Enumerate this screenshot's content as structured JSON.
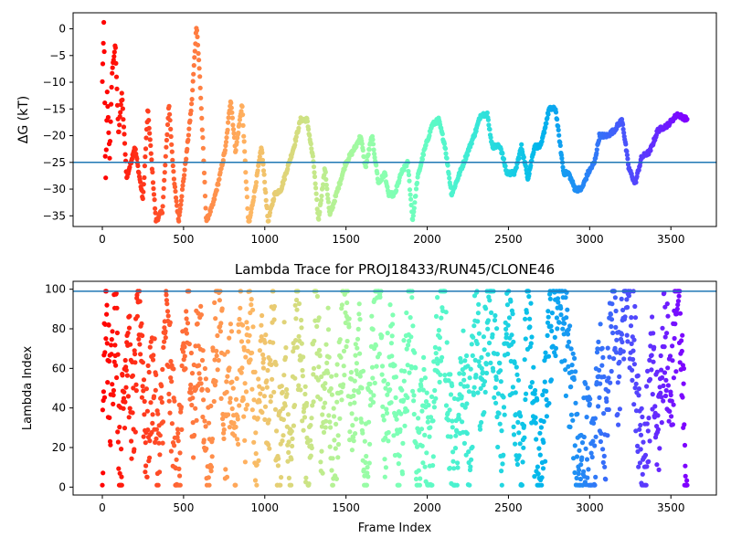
{
  "chart_data": [
    {
      "type": "scatter",
      "title": "",
      "xlabel": "",
      "ylabel": "ΔG (kT)",
      "xlim": [
        -180,
        3780
      ],
      "ylim": [
        -37,
        3
      ],
      "xticks": [
        0,
        500,
        1000,
        1500,
        2000,
        2500,
        3000,
        3500
      ],
      "yticks": [
        0,
        -5,
        -10,
        -15,
        -20,
        -25,
        -30,
        -35
      ],
      "hline": -25,
      "hline_color": "#1f77b4",
      "colormap": "rainbow (reversed with frame index: red at frame 0, violet at frame 3600)",
      "marker_size": 3,
      "frames": [
        0,
        3600
      ],
      "trace": [
        [
          0,
          -10
        ],
        [
          10,
          2
        ],
        [
          20,
          -30
        ],
        [
          30,
          -12
        ],
        [
          45,
          -24
        ],
        [
          60,
          -8
        ],
        [
          80,
          -3
        ],
        [
          100,
          -20
        ],
        [
          120,
          -12
        ],
        [
          150,
          -28
        ],
        [
          200,
          -22
        ],
        [
          250,
          -32
        ],
        [
          280,
          -15
        ],
        [
          330,
          -36
        ],
        [
          370,
          -34
        ],
        [
          410,
          -14
        ],
        [
          440,
          -28
        ],
        [
          470,
          -36
        ],
        [
          520,
          -23
        ],
        [
          550,
          -14
        ],
        [
          580,
          1
        ],
        [
          600,
          -9
        ],
        [
          620,
          -22
        ],
        [
          640,
          -36
        ],
        [
          680,
          -33
        ],
        [
          720,
          -28
        ],
        [
          760,
          -22
        ],
        [
          790,
          -13
        ],
        [
          820,
          -23
        ],
        [
          860,
          -14
        ],
        [
          900,
          -37
        ],
        [
          940,
          -30
        ],
        [
          980,
          -22
        ],
        [
          1020,
          -36
        ],
        [
          1060,
          -31
        ],
        [
          1100,
          -30
        ],
        [
          1140,
          -26
        ],
        [
          1180,
          -22
        ],
        [
          1220,
          -17
        ],
        [
          1260,
          -17
        ],
        [
          1300,
          -25
        ],
        [
          1330,
          -36
        ],
        [
          1370,
          -26
        ],
        [
          1400,
          -35
        ],
        [
          1450,
          -30
        ],
        [
          1500,
          -25
        ],
        [
          1560,
          -22
        ],
        [
          1590,
          -20
        ],
        [
          1620,
          -26
        ],
        [
          1660,
          -20
        ],
        [
          1700,
          -29
        ],
        [
          1740,
          -27
        ],
        [
          1760,
          -31
        ],
        [
          1800,
          -31
        ],
        [
          1840,
          -27
        ],
        [
          1880,
          -25
        ],
        [
          1910,
          -36
        ],
        [
          1940,
          -28
        ],
        [
          1980,
          -23
        ],
        [
          2030,
          -18
        ],
        [
          2070,
          -17
        ],
        [
          2110,
          -22
        ],
        [
          2150,
          -31
        ],
        [
          2200,
          -27
        ],
        [
          2250,
          -23
        ],
        [
          2300,
          -19
        ],
        [
          2330,
          -16
        ],
        [
          2370,
          -16
        ],
        [
          2400,
          -22
        ],
        [
          2450,
          -22
        ],
        [
          2490,
          -27
        ],
        [
          2540,
          -27
        ],
        [
          2580,
          -22
        ],
        [
          2620,
          -28
        ],
        [
          2660,
          -22
        ],
        [
          2700,
          -22
        ],
        [
          2750,
          -15
        ],
        [
          2790,
          -15
        ],
        [
          2840,
          -27
        ],
        [
          2870,
          -27
        ],
        [
          2910,
          -30
        ],
        [
          2950,
          -30
        ],
        [
          2990,
          -27
        ],
        [
          3030,
          -25
        ],
        [
          3060,
          -20
        ],
        [
          3110,
          -20
        ],
        [
          3150,
          -19
        ],
        [
          3200,
          -17
        ],
        [
          3240,
          -26
        ],
        [
          3280,
          -29
        ],
        [
          3320,
          -24
        ],
        [
          3370,
          -23
        ],
        [
          3420,
          -19
        ],
        [
          3480,
          -18
        ],
        [
          3540,
          -16
        ],
        [
          3600,
          -17
        ]
      ]
    },
    {
      "type": "scatter",
      "title": "Lambda Trace for PROJ18433/RUN45/CLONE46",
      "xlabel": "Frame Index",
      "ylabel": "Lambda Index",
      "xlim": [
        -180,
        3780
      ],
      "ylim": [
        -4,
        104
      ],
      "xticks": [
        0,
        500,
        1000,
        1500,
        2000,
        2500,
        3000,
        3500
      ],
      "yticks": [
        0,
        20,
        40,
        60,
        80,
        100
      ],
      "hline": 99,
      "hline_color": "#1f77b4",
      "colormap": "rainbow (reversed with frame index: red at frame 0, violet at frame 3600)",
      "marker_size": 3,
      "frames": [
        0,
        3600
      ],
      "trace": [
        [
          0,
          5
        ],
        [
          20,
          90
        ],
        [
          50,
          40
        ],
        [
          80,
          95
        ],
        [
          110,
          10
        ],
        [
          150,
          80
        ],
        [
          190,
          30
        ],
        [
          230,
          95
        ],
        [
          270,
          20
        ],
        [
          310,
          60
        ],
        [
          350,
          10
        ],
        [
          390,
          85
        ],
        [
          430,
          40
        ],
        [
          470,
          5
        ],
        [
          500,
          60
        ],
        [
          530,
          95
        ],
        [
          560,
          30
        ],
        [
          590,
          80
        ],
        [
          620,
          50
        ],
        [
          660,
          10
        ],
        [
          690,
          70
        ],
        [
          720,
          95
        ],
        [
          760,
          25
        ],
        [
          790,
          60
        ],
        [
          820,
          5
        ],
        [
          850,
          90
        ],
        [
          880,
          40
        ],
        [
          910,
          98
        ],
        [
          950,
          15
        ],
        [
          990,
          70
        ],
        [
          1020,
          30
        ],
        [
          1050,
          95
        ],
        [
          1080,
          5
        ],
        [
          1120,
          60
        ],
        [
          1160,
          20
        ],
        [
          1200,
          85
        ],
        [
          1240,
          40
        ],
        [
          1280,
          5
        ],
        [
          1310,
          98
        ],
        [
          1350,
          30
        ],
        [
          1390,
          70
        ],
        [
          1420,
          5
        ],
        [
          1460,
          55
        ],
        [
          1500,
          95
        ],
        [
          1540,
          20
        ],
        [
          1580,
          80
        ],
        [
          1620,
          10
        ],
        [
          1660,
          60
        ],
        [
          1700,
          98
        ],
        [
          1740,
          30
        ],
        [
          1780,
          75
        ],
        [
          1820,
          5
        ],
        [
          1860,
          50
        ],
        [
          1900,
          95
        ],
        [
          1940,
          10
        ],
        [
          1980,
          40
        ],
        [
          2020,
          5
        ],
        [
          2060,
          70
        ],
        [
          2100,
          98
        ],
        [
          2140,
          30
        ],
        [
          2180,
          10
        ],
        [
          2220,
          55
        ],
        [
          2260,
          25
        ],
        [
          2300,
          80
        ],
        [
          2340,
          40
        ],
        [
          2380,
          98
        ],
        [
          2420,
          60
        ],
        [
          2460,
          20
        ],
        [
          2500,
          85
        ],
        [
          2540,
          45
        ],
        [
          2580,
          10
        ],
        [
          2620,
          98
        ],
        [
          2660,
          30
        ],
        [
          2700,
          5
        ],
        [
          2740,
          60
        ],
        [
          2780,
          90
        ],
        [
          2820,
          98
        ],
        [
          2860,
          70
        ],
        [
          2900,
          40
        ],
        [
          2940,
          10
        ],
        [
          2980,
          30
        ],
        [
          3020,
          5
        ],
        [
          3060,
          60
        ],
        [
          3100,
          20
        ],
        [
          3140,
          95
        ],
        [
          3180,
          50
        ],
        [
          3220,
          98
        ],
        [
          3260,
          85
        ],
        [
          3300,
          40
        ],
        [
          3340,
          10
        ],
        [
          3380,
          60
        ],
        [
          3420,
          25
        ],
        [
          3460,
          80
        ],
        [
          3500,
          45
        ],
        [
          3540,
          98
        ],
        [
          3600,
          2
        ]
      ]
    }
  ]
}
